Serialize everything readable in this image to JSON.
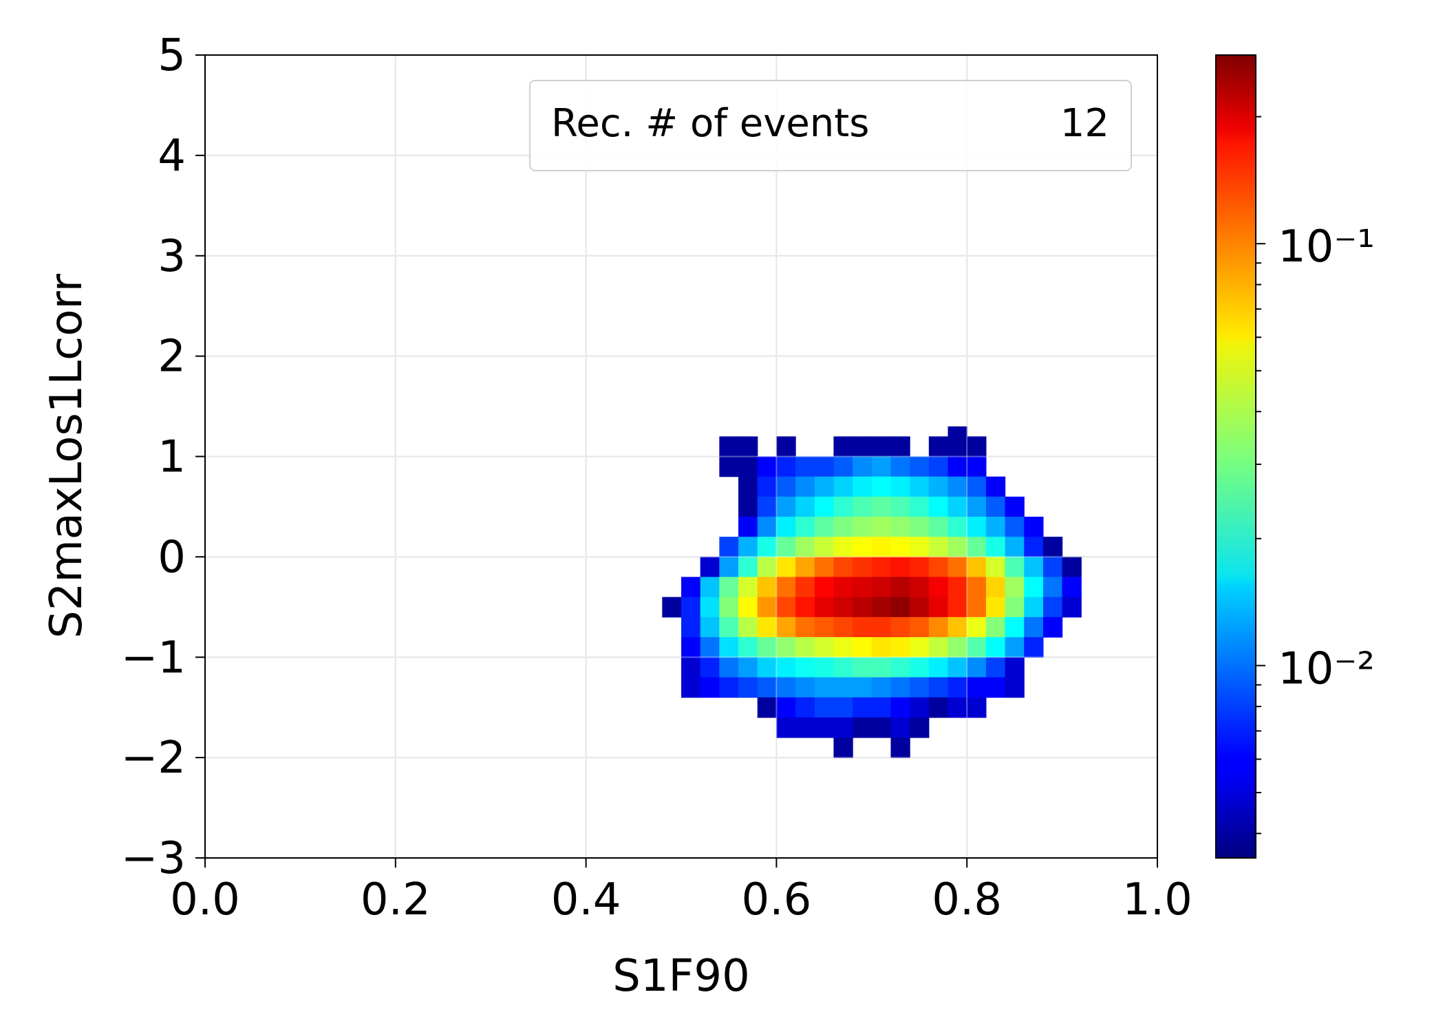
{
  "chart_data": {
    "type": "heatmap",
    "title": "",
    "xlabel": "S1F90",
    "ylabel": "S2maxLos1Lcorr",
    "xlim": [
      0.0,
      1.0
    ],
    "ylim": [
      -3,
      5
    ],
    "x_ticks": [
      0.0,
      0.2,
      0.4,
      0.6,
      0.8,
      1.0
    ],
    "x_tick_labels": [
      "0.0",
      "0.2",
      "0.4",
      "0.6",
      "0.8",
      "1.0"
    ],
    "y_ticks": [
      -3,
      -2,
      -1,
      0,
      1,
      2,
      3,
      4,
      5
    ],
    "y_tick_labels": [
      "−3",
      "−2",
      "−1",
      "0",
      "1",
      "2",
      "3",
      "4",
      "5"
    ],
    "grid": true,
    "legend": {
      "position": "top-right",
      "label": "Rec. # of events",
      "value": "12"
    },
    "colormap": "jet",
    "color_scale": "log",
    "colorbar": {
      "min": 0.0035,
      "max": 0.28,
      "major_ticks": [
        0.01,
        0.1
      ],
      "major_tick_labels": [
        "10⁻²",
        "10⁻¹"
      ]
    },
    "bin_width_x": 0.02,
    "bin_height_y": 0.2,
    "cells": [
      [
        0.55,
        1.1,
        0.004
      ],
      [
        0.57,
        1.1,
        0.004
      ],
      [
        0.61,
        1.1,
        0.004
      ],
      [
        0.67,
        1.1,
        0.004
      ],
      [
        0.69,
        1.1,
        0.004
      ],
      [
        0.71,
        1.1,
        0.004
      ],
      [
        0.73,
        1.1,
        0.004
      ],
      [
        0.77,
        1.1,
        0.004
      ],
      [
        0.79,
        1.1,
        0.004
      ],
      [
        0.81,
        1.1,
        0.004
      ],
      [
        0.79,
        1.2,
        0.004
      ],
      [
        0.55,
        0.9,
        0.004
      ],
      [
        0.57,
        0.9,
        0.004
      ],
      [
        0.59,
        0.9,
        0.006
      ],
      [
        0.61,
        0.9,
        0.007
      ],
      [
        0.63,
        0.9,
        0.008
      ],
      [
        0.65,
        0.9,
        0.008
      ],
      [
        0.67,
        0.9,
        0.009
      ],
      [
        0.69,
        0.9,
        0.011
      ],
      [
        0.71,
        0.9,
        0.012
      ],
      [
        0.73,
        0.9,
        0.01
      ],
      [
        0.75,
        0.9,
        0.009
      ],
      [
        0.77,
        0.9,
        0.008
      ],
      [
        0.79,
        0.9,
        0.006
      ],
      [
        0.81,
        0.9,
        0.006
      ],
      [
        0.57,
        0.7,
        0.004
      ],
      [
        0.59,
        0.7,
        0.007
      ],
      [
        0.61,
        0.7,
        0.009
      ],
      [
        0.63,
        0.7,
        0.011
      ],
      [
        0.65,
        0.7,
        0.013
      ],
      [
        0.67,
        0.7,
        0.015
      ],
      [
        0.69,
        0.7,
        0.017
      ],
      [
        0.71,
        0.7,
        0.018
      ],
      [
        0.73,
        0.7,
        0.017
      ],
      [
        0.75,
        0.7,
        0.015
      ],
      [
        0.77,
        0.7,
        0.013
      ],
      [
        0.79,
        0.7,
        0.011
      ],
      [
        0.81,
        0.7,
        0.009
      ],
      [
        0.83,
        0.7,
        0.006
      ],
      [
        0.57,
        0.5,
        0.004
      ],
      [
        0.59,
        0.5,
        0.008
      ],
      [
        0.61,
        0.5,
        0.012
      ],
      [
        0.63,
        0.5,
        0.015
      ],
      [
        0.65,
        0.5,
        0.018
      ],
      [
        0.67,
        0.5,
        0.022
      ],
      [
        0.69,
        0.5,
        0.025
      ],
      [
        0.71,
        0.5,
        0.027
      ],
      [
        0.73,
        0.5,
        0.025
      ],
      [
        0.75,
        0.5,
        0.022
      ],
      [
        0.77,
        0.5,
        0.018
      ],
      [
        0.79,
        0.5,
        0.015
      ],
      [
        0.81,
        0.5,
        0.012
      ],
      [
        0.83,
        0.5,
        0.009
      ],
      [
        0.85,
        0.5,
        0.006
      ],
      [
        0.57,
        0.3,
        0.006
      ],
      [
        0.59,
        0.3,
        0.011
      ],
      [
        0.61,
        0.3,
        0.017
      ],
      [
        0.63,
        0.3,
        0.022
      ],
      [
        0.65,
        0.3,
        0.027
      ],
      [
        0.67,
        0.3,
        0.031
      ],
      [
        0.69,
        0.3,
        0.034
      ],
      [
        0.71,
        0.3,
        0.036
      ],
      [
        0.73,
        0.3,
        0.034
      ],
      [
        0.75,
        0.3,
        0.031
      ],
      [
        0.77,
        0.3,
        0.027
      ],
      [
        0.79,
        0.3,
        0.022
      ],
      [
        0.81,
        0.3,
        0.017
      ],
      [
        0.83,
        0.3,
        0.013
      ],
      [
        0.85,
        0.3,
        0.009
      ],
      [
        0.87,
        0.3,
        0.006
      ],
      [
        0.55,
        0.1,
        0.008
      ],
      [
        0.57,
        0.1,
        0.013
      ],
      [
        0.59,
        0.1,
        0.02
      ],
      [
        0.61,
        0.1,
        0.028
      ],
      [
        0.63,
        0.1,
        0.036
      ],
      [
        0.65,
        0.1,
        0.043
      ],
      [
        0.67,
        0.1,
        0.05
      ],
      [
        0.69,
        0.1,
        0.054
      ],
      [
        0.71,
        0.1,
        0.056
      ],
      [
        0.73,
        0.1,
        0.054
      ],
      [
        0.75,
        0.1,
        0.05
      ],
      [
        0.77,
        0.1,
        0.043
      ],
      [
        0.79,
        0.1,
        0.036
      ],
      [
        0.81,
        0.1,
        0.028
      ],
      [
        0.83,
        0.1,
        0.02
      ],
      [
        0.85,
        0.1,
        0.013
      ],
      [
        0.87,
        0.1,
        0.007
      ],
      [
        0.89,
        0.1,
        0.004
      ],
      [
        0.53,
        -0.1,
        0.005
      ],
      [
        0.55,
        -0.1,
        0.012
      ],
      [
        0.57,
        -0.1,
        0.022
      ],
      [
        0.59,
        -0.1,
        0.04
      ],
      [
        0.61,
        -0.1,
        0.06
      ],
      [
        0.63,
        -0.1,
        0.08
      ],
      [
        0.65,
        -0.1,
        0.1
      ],
      [
        0.67,
        -0.1,
        0.12
      ],
      [
        0.69,
        -0.1,
        0.13
      ],
      [
        0.71,
        -0.1,
        0.14
      ],
      [
        0.73,
        -0.1,
        0.15
      ],
      [
        0.75,
        -0.1,
        0.14
      ],
      [
        0.77,
        -0.1,
        0.12
      ],
      [
        0.79,
        -0.1,
        0.1
      ],
      [
        0.81,
        -0.1,
        0.07
      ],
      [
        0.83,
        -0.1,
        0.045
      ],
      [
        0.85,
        -0.1,
        0.025
      ],
      [
        0.87,
        -0.1,
        0.014
      ],
      [
        0.89,
        -0.1,
        0.008
      ],
      [
        0.91,
        -0.1,
        0.004
      ],
      [
        0.51,
        -0.3,
        0.006
      ],
      [
        0.53,
        -0.3,
        0.014
      ],
      [
        0.55,
        -0.3,
        0.028
      ],
      [
        0.57,
        -0.3,
        0.045
      ],
      [
        0.59,
        -0.3,
        0.07
      ],
      [
        0.61,
        -0.3,
        0.1
      ],
      [
        0.63,
        -0.3,
        0.13
      ],
      [
        0.65,
        -0.3,
        0.16
      ],
      [
        0.67,
        -0.3,
        0.18
      ],
      [
        0.69,
        -0.3,
        0.19
      ],
      [
        0.71,
        -0.3,
        0.2
      ],
      [
        0.73,
        -0.3,
        0.22
      ],
      [
        0.75,
        -0.3,
        0.2
      ],
      [
        0.77,
        -0.3,
        0.17
      ],
      [
        0.79,
        -0.3,
        0.14
      ],
      [
        0.81,
        -0.3,
        0.1
      ],
      [
        0.83,
        -0.3,
        0.065
      ],
      [
        0.85,
        -0.3,
        0.036
      ],
      [
        0.87,
        -0.3,
        0.018
      ],
      [
        0.89,
        -0.3,
        0.01
      ],
      [
        0.91,
        -0.3,
        0.006
      ],
      [
        0.49,
        -0.5,
        0.004
      ],
      [
        0.51,
        -0.5,
        0.007
      ],
      [
        0.53,
        -0.5,
        0.016
      ],
      [
        0.55,
        -0.5,
        0.032
      ],
      [
        0.57,
        -0.5,
        0.055
      ],
      [
        0.59,
        -0.5,
        0.085
      ],
      [
        0.61,
        -0.5,
        0.12
      ],
      [
        0.63,
        -0.5,
        0.15
      ],
      [
        0.65,
        -0.5,
        0.18
      ],
      [
        0.67,
        -0.5,
        0.2
      ],
      [
        0.69,
        -0.5,
        0.22
      ],
      [
        0.71,
        -0.5,
        0.24
      ],
      [
        0.73,
        -0.5,
        0.26
      ],
      [
        0.75,
        -0.5,
        0.22
      ],
      [
        0.77,
        -0.5,
        0.18
      ],
      [
        0.79,
        -0.5,
        0.14
      ],
      [
        0.81,
        -0.5,
        0.1
      ],
      [
        0.83,
        -0.5,
        0.06
      ],
      [
        0.85,
        -0.5,
        0.032
      ],
      [
        0.87,
        -0.5,
        0.015
      ],
      [
        0.89,
        -0.5,
        0.008
      ],
      [
        0.91,
        -0.5,
        0.005
      ],
      [
        0.51,
        -0.7,
        0.007
      ],
      [
        0.53,
        -0.7,
        0.014
      ],
      [
        0.55,
        -0.7,
        0.025
      ],
      [
        0.57,
        -0.7,
        0.04
      ],
      [
        0.59,
        -0.7,
        0.06
      ],
      [
        0.61,
        -0.7,
        0.08
      ],
      [
        0.63,
        -0.7,
        0.1
      ],
      [
        0.65,
        -0.7,
        0.11
      ],
      [
        0.67,
        -0.7,
        0.12
      ],
      [
        0.69,
        -0.7,
        0.13
      ],
      [
        0.71,
        -0.7,
        0.13
      ],
      [
        0.73,
        -0.7,
        0.12
      ],
      [
        0.75,
        -0.7,
        0.11
      ],
      [
        0.77,
        -0.7,
        0.09
      ],
      [
        0.79,
        -0.7,
        0.07
      ],
      [
        0.81,
        -0.7,
        0.05
      ],
      [
        0.83,
        -0.7,
        0.032
      ],
      [
        0.85,
        -0.7,
        0.018
      ],
      [
        0.87,
        -0.7,
        0.01
      ],
      [
        0.89,
        -0.7,
        0.006
      ],
      [
        0.51,
        -0.9,
        0.006
      ],
      [
        0.53,
        -0.9,
        0.01
      ],
      [
        0.55,
        -0.9,
        0.016
      ],
      [
        0.57,
        -0.9,
        0.022
      ],
      [
        0.59,
        -0.9,
        0.028
      ],
      [
        0.61,
        -0.9,
        0.034
      ],
      [
        0.63,
        -0.9,
        0.04
      ],
      [
        0.65,
        -0.9,
        0.045
      ],
      [
        0.67,
        -0.9,
        0.05
      ],
      [
        0.69,
        -0.9,
        0.055
      ],
      [
        0.71,
        -0.9,
        0.06
      ],
      [
        0.73,
        -0.9,
        0.058
      ],
      [
        0.75,
        -0.9,
        0.05
      ],
      [
        0.77,
        -0.9,
        0.042
      ],
      [
        0.79,
        -0.9,
        0.034
      ],
      [
        0.81,
        -0.9,
        0.026
      ],
      [
        0.83,
        -0.9,
        0.018
      ],
      [
        0.85,
        -0.9,
        0.012
      ],
      [
        0.87,
        -0.9,
        0.007
      ],
      [
        0.51,
        -1.1,
        0.005
      ],
      [
        0.53,
        -1.1,
        0.007
      ],
      [
        0.55,
        -1.1,
        0.01
      ],
      [
        0.57,
        -1.1,
        0.012
      ],
      [
        0.59,
        -1.1,
        0.015
      ],
      [
        0.61,
        -1.1,
        0.017
      ],
      [
        0.63,
        -1.1,
        0.019
      ],
      [
        0.65,
        -1.1,
        0.02
      ],
      [
        0.67,
        -1.1,
        0.022
      ],
      [
        0.69,
        -1.1,
        0.024
      ],
      [
        0.71,
        -1.1,
        0.024
      ],
      [
        0.73,
        -1.1,
        0.022
      ],
      [
        0.75,
        -1.1,
        0.02
      ],
      [
        0.77,
        -1.1,
        0.017
      ],
      [
        0.79,
        -1.1,
        0.014
      ],
      [
        0.81,
        -1.1,
        0.011
      ],
      [
        0.83,
        -1.1,
        0.008
      ],
      [
        0.85,
        -1.1,
        0.005
      ],
      [
        0.51,
        -1.3,
        0.005
      ],
      [
        0.53,
        -1.3,
        0.006
      ],
      [
        0.55,
        -1.3,
        0.007
      ],
      [
        0.57,
        -1.3,
        0.008
      ],
      [
        0.59,
        -1.3,
        0.009
      ],
      [
        0.61,
        -1.3,
        0.01
      ],
      [
        0.63,
        -1.3,
        0.011
      ],
      [
        0.65,
        -1.3,
        0.012
      ],
      [
        0.67,
        -1.3,
        0.012
      ],
      [
        0.69,
        -1.3,
        0.012
      ],
      [
        0.71,
        -1.3,
        0.011
      ],
      [
        0.73,
        -1.3,
        0.01
      ],
      [
        0.75,
        -1.3,
        0.009
      ],
      [
        0.77,
        -1.3,
        0.008
      ],
      [
        0.79,
        -1.3,
        0.007
      ],
      [
        0.81,
        -1.3,
        0.006
      ],
      [
        0.83,
        -1.3,
        0.006
      ],
      [
        0.85,
        -1.3,
        0.005
      ],
      [
        0.59,
        -1.5,
        0.004
      ],
      [
        0.61,
        -1.5,
        0.006
      ],
      [
        0.63,
        -1.5,
        0.007
      ],
      [
        0.65,
        -1.5,
        0.008
      ],
      [
        0.67,
        -1.5,
        0.008
      ],
      [
        0.69,
        -1.5,
        0.007
      ],
      [
        0.71,
        -1.5,
        0.007
      ],
      [
        0.73,
        -1.5,
        0.006
      ],
      [
        0.75,
        -1.5,
        0.005
      ],
      [
        0.77,
        -1.5,
        0.004
      ],
      [
        0.79,
        -1.5,
        0.005
      ],
      [
        0.81,
        -1.5,
        0.005
      ],
      [
        0.61,
        -1.7,
        0.005
      ],
      [
        0.63,
        -1.7,
        0.005
      ],
      [
        0.65,
        -1.7,
        0.005
      ],
      [
        0.67,
        -1.7,
        0.005
      ],
      [
        0.69,
        -1.7,
        0.004
      ],
      [
        0.71,
        -1.7,
        0.004
      ],
      [
        0.73,
        -1.7,
        0.005
      ],
      [
        0.75,
        -1.7,
        0.004
      ],
      [
        0.67,
        -1.9,
        0.004
      ],
      [
        0.73,
        -1.9,
        0.004
      ]
    ]
  }
}
